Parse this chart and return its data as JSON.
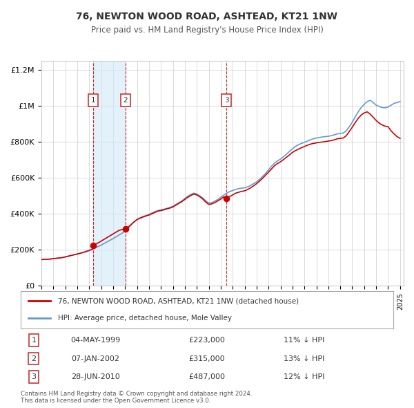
{
  "title": "76, NEWTON WOOD ROAD, ASHTEAD, KT21 1NW",
  "subtitle": "Price paid vs. HM Land Registry's House Price Index (HPI)",
  "legend_label_red": "76, NEWTON WOOD ROAD, ASHTEAD, KT21 1NW (detached house)",
  "legend_label_blue": "HPI: Average price, detached house, Mole Valley",
  "footer": "Contains HM Land Registry data © Crown copyright and database right 2024.\nThis data is licensed under the Open Government Licence v3.0.",
  "transactions": [
    {
      "num": 1,
      "date": "04-MAY-1999",
      "price": 223000,
      "pct": "11%",
      "x_year": 1999.35
    },
    {
      "num": 2,
      "date": "07-JAN-2002",
      "price": 315000,
      "pct": "13%",
      "x_year": 2002.03
    },
    {
      "num": 3,
      "date": "28-JUN-2010",
      "price": 487000,
      "pct": "12%",
      "x_year": 2010.49
    }
  ],
  "red_line_color": "#cc0000",
  "blue_line_color": "#6699cc",
  "plot_bg": "#ffffff",
  "grid_color": "#cccccc",
  "shade_color": "#d0e8f8",
  "dashed_line_color": "#cc0000",
  "ylim": [
    0,
    1250000
  ],
  "xlim_start": 1995.0,
  "xlim_end": 2025.3,
  "yticks": [
    0,
    200000,
    400000,
    600000,
    800000,
    1000000,
    1200000
  ],
  "ytick_labels": [
    "£0",
    "£200K",
    "£400K",
    "£600K",
    "£800K",
    "£1M",
    "£1.2M"
  ],
  "xticks": [
    1995,
    1996,
    1997,
    1998,
    1999,
    2000,
    2001,
    2002,
    2003,
    2004,
    2005,
    2006,
    2007,
    2008,
    2009,
    2010,
    2011,
    2012,
    2013,
    2014,
    2015,
    2016,
    2017,
    2018,
    2019,
    2020,
    2021,
    2022,
    2023,
    2024,
    2025
  ],
  "hpi_data": [
    [
      1995.0,
      145000
    ],
    [
      1995.25,
      146000
    ],
    [
      1995.5,
      147000
    ],
    [
      1995.75,
      148000
    ],
    [
      1996.0,
      150000
    ],
    [
      1996.25,
      152000
    ],
    [
      1996.5,
      154000
    ],
    [
      1996.75,
      156000
    ],
    [
      1997.0,
      160000
    ],
    [
      1997.25,
      164000
    ],
    [
      1997.5,
      168000
    ],
    [
      1997.75,
      172000
    ],
    [
      1998.0,
      176000
    ],
    [
      1998.25,
      180000
    ],
    [
      1998.5,
      185000
    ],
    [
      1998.75,
      190000
    ],
    [
      1999.0,
      196000
    ],
    [
      1999.25,
      202000
    ],
    [
      1999.5,
      210000
    ],
    [
      1999.75,
      218000
    ],
    [
      2000.0,
      226000
    ],
    [
      2000.25,
      235000
    ],
    [
      2000.5,
      244000
    ],
    [
      2000.75,
      253000
    ],
    [
      2001.0,
      262000
    ],
    [
      2001.25,
      272000
    ],
    [
      2001.5,
      282000
    ],
    [
      2001.75,
      292000
    ],
    [
      2002.0,
      305000
    ],
    [
      2002.25,
      320000
    ],
    [
      2002.5,
      338000
    ],
    [
      2002.75,
      355000
    ],
    [
      2003.0,
      368000
    ],
    [
      2003.25,
      378000
    ],
    [
      2003.5,
      385000
    ],
    [
      2003.75,
      390000
    ],
    [
      2004.0,
      396000
    ],
    [
      2004.25,
      405000
    ],
    [
      2004.5,
      412000
    ],
    [
      2004.75,
      418000
    ],
    [
      2005.0,
      422000
    ],
    [
      2005.25,
      426000
    ],
    [
      2005.5,
      430000
    ],
    [
      2005.75,
      435000
    ],
    [
      2006.0,
      442000
    ],
    [
      2006.25,
      452000
    ],
    [
      2006.5,
      462000
    ],
    [
      2006.75,
      472000
    ],
    [
      2007.0,
      485000
    ],
    [
      2007.25,
      498000
    ],
    [
      2007.5,
      508000
    ],
    [
      2007.75,
      515000
    ],
    [
      2008.0,
      510000
    ],
    [
      2008.25,
      500000
    ],
    [
      2008.5,
      488000
    ],
    [
      2008.75,
      472000
    ],
    [
      2009.0,
      460000
    ],
    [
      2009.25,
      462000
    ],
    [
      2009.5,
      470000
    ],
    [
      2009.75,
      480000
    ],
    [
      2010.0,
      492000
    ],
    [
      2010.25,
      504000
    ],
    [
      2010.5,
      515000
    ],
    [
      2010.75,
      524000
    ],
    [
      2011.0,
      530000
    ],
    [
      2011.25,
      536000
    ],
    [
      2011.5,
      540000
    ],
    [
      2011.75,
      543000
    ],
    [
      2012.0,
      545000
    ],
    [
      2012.25,
      550000
    ],
    [
      2012.5,
      558000
    ],
    [
      2012.75,
      568000
    ],
    [
      2013.0,
      578000
    ],
    [
      2013.25,
      592000
    ],
    [
      2013.5,
      608000
    ],
    [
      2013.75,
      625000
    ],
    [
      2014.0,
      645000
    ],
    [
      2014.25,
      665000
    ],
    [
      2014.5,
      682000
    ],
    [
      2014.75,
      695000
    ],
    [
      2015.0,
      705000
    ],
    [
      2015.25,
      718000
    ],
    [
      2015.5,
      732000
    ],
    [
      2015.75,
      748000
    ],
    [
      2016.0,
      762000
    ],
    [
      2016.25,
      775000
    ],
    [
      2016.5,
      785000
    ],
    [
      2016.75,
      792000
    ],
    [
      2017.0,
      798000
    ],
    [
      2017.25,
      805000
    ],
    [
      2017.5,
      812000
    ],
    [
      2017.75,
      818000
    ],
    [
      2018.0,
      822000
    ],
    [
      2018.25,
      825000
    ],
    [
      2018.5,
      828000
    ],
    [
      2018.75,
      830000
    ],
    [
      2019.0,
      832000
    ],
    [
      2019.25,
      835000
    ],
    [
      2019.5,
      840000
    ],
    [
      2019.75,
      845000
    ],
    [
      2020.0,
      848000
    ],
    [
      2020.25,
      850000
    ],
    [
      2020.5,
      862000
    ],
    [
      2020.75,
      885000
    ],
    [
      2021.0,
      910000
    ],
    [
      2021.25,
      940000
    ],
    [
      2021.5,
      968000
    ],
    [
      2021.75,
      992000
    ],
    [
      2022.0,
      1010000
    ],
    [
      2022.25,
      1025000
    ],
    [
      2022.5,
      1032000
    ],
    [
      2022.75,
      1020000
    ],
    [
      2023.0,
      1005000
    ],
    [
      2023.25,
      998000
    ],
    [
      2023.5,
      992000
    ],
    [
      2023.75,
      990000
    ],
    [
      2024.0,
      995000
    ],
    [
      2024.25,
      1005000
    ],
    [
      2024.5,
      1015000
    ],
    [
      2024.75,
      1020000
    ],
    [
      2025.0,
      1025000
    ]
  ],
  "red_data": [
    [
      1995.0,
      145000
    ],
    [
      1995.25,
      146000
    ],
    [
      1995.5,
      147000
    ],
    [
      1995.75,
      148000
    ],
    [
      1996.0,
      150000
    ],
    [
      1996.25,
      152000
    ],
    [
      1996.5,
      154000
    ],
    [
      1996.75,
      156000
    ],
    [
      1997.0,
      160000
    ],
    [
      1997.25,
      164000
    ],
    [
      1997.5,
      168000
    ],
    [
      1997.75,
      172000
    ],
    [
      1998.0,
      176000
    ],
    [
      1998.25,
      180000
    ],
    [
      1998.5,
      185000
    ],
    [
      1998.75,
      190000
    ],
    [
      1999.0,
      196000
    ],
    [
      1999.25,
      202000
    ],
    [
      1999.35,
      223000
    ],
    [
      1999.5,
      230000
    ],
    [
      1999.75,
      238000
    ],
    [
      2000.0,
      248000
    ],
    [
      2000.25,
      258000
    ],
    [
      2000.5,
      268000
    ],
    [
      2000.75,
      278000
    ],
    [
      2001.0,
      288000
    ],
    [
      2001.25,
      298000
    ],
    [
      2001.5,
      308000
    ],
    [
      2001.75,
      312000
    ],
    [
      2002.0,
      318000
    ],
    [
      2002.03,
      315000
    ],
    [
      2002.25,
      325000
    ],
    [
      2002.5,
      340000
    ],
    [
      2002.75,
      355000
    ],
    [
      2003.0,
      368000
    ],
    [
      2003.25,
      375000
    ],
    [
      2003.5,
      382000
    ],
    [
      2003.75,
      388000
    ],
    [
      2004.0,
      393000
    ],
    [
      2004.25,
      400000
    ],
    [
      2004.5,
      408000
    ],
    [
      2004.75,
      415000
    ],
    [
      2005.0,
      418000
    ],
    [
      2005.25,
      422000
    ],
    [
      2005.5,
      428000
    ],
    [
      2005.75,
      432000
    ],
    [
      2006.0,
      438000
    ],
    [
      2006.25,
      448000
    ],
    [
      2006.5,
      458000
    ],
    [
      2006.75,
      468000
    ],
    [
      2007.0,
      480000
    ],
    [
      2007.25,
      492000
    ],
    [
      2007.5,
      502000
    ],
    [
      2007.75,
      510000
    ],
    [
      2008.0,
      505000
    ],
    [
      2008.25,
      495000
    ],
    [
      2008.5,
      482000
    ],
    [
      2008.75,
      465000
    ],
    [
      2009.0,
      452000
    ],
    [
      2009.25,
      455000
    ],
    [
      2009.5,
      462000
    ],
    [
      2009.75,
      472000
    ],
    [
      2010.0,
      482000
    ],
    [
      2010.25,
      494000
    ],
    [
      2010.49,
      487000
    ],
    [
      2010.5,
      488000
    ],
    [
      2010.75,
      496000
    ],
    [
      2011.0,
      505000
    ],
    [
      2011.25,
      515000
    ],
    [
      2011.5,
      520000
    ],
    [
      2011.75,
      525000
    ],
    [
      2012.0,
      528000
    ],
    [
      2012.25,
      535000
    ],
    [
      2012.5,
      545000
    ],
    [
      2012.75,
      556000
    ],
    [
      2013.0,
      568000
    ],
    [
      2013.25,
      582000
    ],
    [
      2013.5,
      598000
    ],
    [
      2013.75,
      615000
    ],
    [
      2014.0,
      632000
    ],
    [
      2014.25,
      650000
    ],
    [
      2014.5,
      668000
    ],
    [
      2014.75,
      680000
    ],
    [
      2015.0,
      690000
    ],
    [
      2015.25,
      702000
    ],
    [
      2015.5,
      715000
    ],
    [
      2015.75,
      728000
    ],
    [
      2016.0,
      742000
    ],
    [
      2016.25,
      752000
    ],
    [
      2016.5,
      760000
    ],
    [
      2016.75,
      768000
    ],
    [
      2017.0,
      775000
    ],
    [
      2017.25,
      782000
    ],
    [
      2017.5,
      788000
    ],
    [
      2017.75,
      792000
    ],
    [
      2018.0,
      795000
    ],
    [
      2018.25,
      798000
    ],
    [
      2018.5,
      800000
    ],
    [
      2018.75,
      802000
    ],
    [
      2019.0,
      805000
    ],
    [
      2019.25,
      808000
    ],
    [
      2019.5,
      812000
    ],
    [
      2019.75,
      818000
    ],
    [
      2020.0,
      820000
    ],
    [
      2020.25,
      822000
    ],
    [
      2020.5,
      835000
    ],
    [
      2020.75,
      858000
    ],
    [
      2021.0,
      882000
    ],
    [
      2021.25,
      908000
    ],
    [
      2021.5,
      932000
    ],
    [
      2021.75,
      950000
    ],
    [
      2022.0,
      962000
    ],
    [
      2022.25,
      968000
    ],
    [
      2022.5,
      955000
    ],
    [
      2022.75,
      938000
    ],
    [
      2023.0,
      920000
    ],
    [
      2023.25,
      905000
    ],
    [
      2023.5,
      895000
    ],
    [
      2023.75,
      888000
    ],
    [
      2024.0,
      885000
    ],
    [
      2024.25,
      862000
    ],
    [
      2024.5,
      845000
    ],
    [
      2024.75,
      830000
    ],
    [
      2025.0,
      820000
    ]
  ]
}
